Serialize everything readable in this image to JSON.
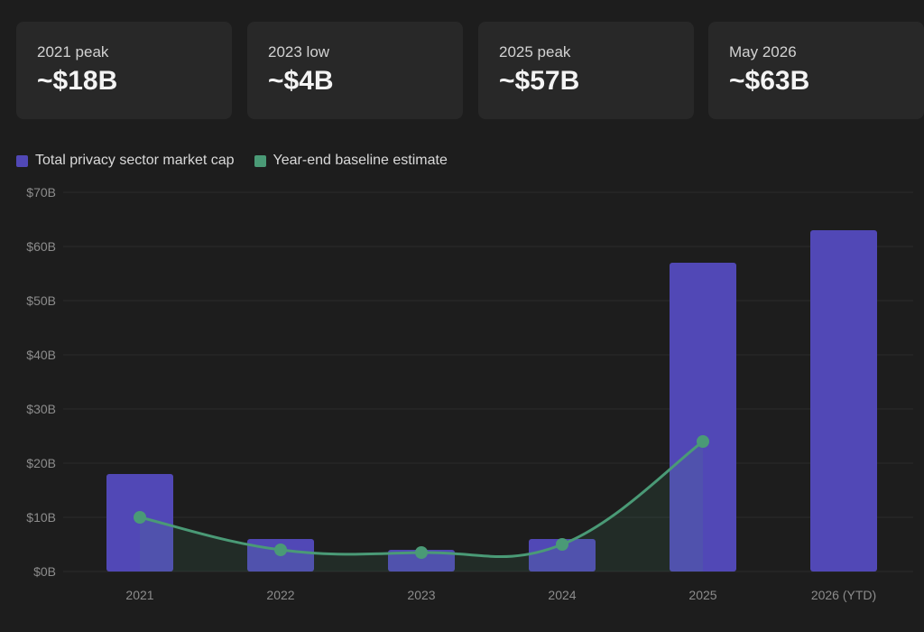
{
  "stats": [
    {
      "label": "2021 peak",
      "value": "~$18B"
    },
    {
      "label": "2023 low",
      "value": "~$4B"
    },
    {
      "label": "2025 peak",
      "value": "~$57B"
    },
    {
      "label": "May 2026",
      "value": "~$63B"
    }
  ],
  "colors": {
    "bar": "#5148b6",
    "line": "#4a9a76",
    "background": "#1d1d1d",
    "card": "#282828"
  },
  "chart_data": {
    "type": "bar",
    "categories": [
      "2021",
      "2022",
      "2023",
      "2024",
      "2025",
      "2026 (YTD)"
    ],
    "series": [
      {
        "name": "Total privacy sector market cap",
        "type": "bar",
        "values": [
          18,
          6,
          4,
          6,
          57,
          63
        ]
      },
      {
        "name": "Year-end baseline estimate",
        "type": "line",
        "values": [
          10,
          4,
          3.5,
          5,
          24,
          null
        ]
      }
    ],
    "ylim": [
      0,
      70
    ],
    "yticks": [
      0,
      10,
      20,
      30,
      40,
      50,
      60,
      70
    ],
    "ytick_labels": [
      "$0B",
      "$10B",
      "$20B",
      "$30B",
      "$40B",
      "$50B",
      "$60B",
      "$70B"
    ],
    "grid": true,
    "legend": "top-left"
  }
}
